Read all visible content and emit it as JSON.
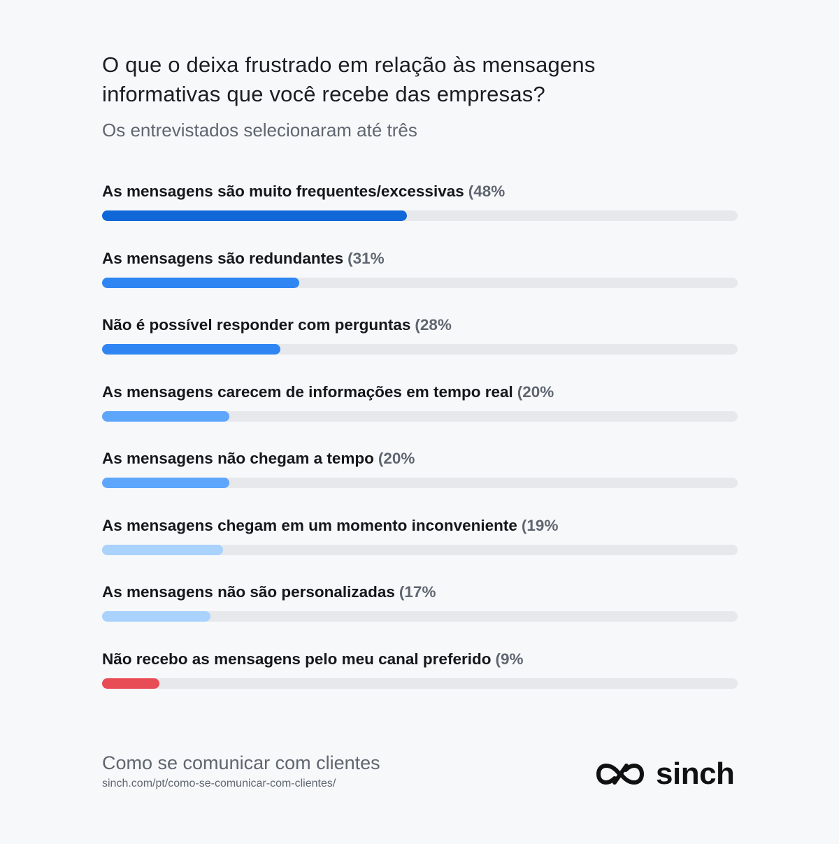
{
  "title_line1": "O que o deixa frustrado em relação às mensagens",
  "title_line2": "informativas que você recebe das empresas?",
  "subtitle": "Os entrevistados selecionaram até três",
  "chart_data": {
    "type": "bar",
    "orientation": "horizontal",
    "title": "O que o deixa frustrado em relação às mensagens informativas que você recebe das empresas?",
    "subtitle": "Os entrevistados selecionaram até três",
    "xlim": [
      0,
      100
    ],
    "categories": [
      "As mensagens são muito frequentes/excessivas",
      "As mensagens são redundantes",
      "Não é possível responder com perguntas",
      "As mensagens carecem de informações em tempo real",
      "As mensagens não chegam a tempo",
      "As mensagens chegam em um momento inconveniente",
      "As mensagens não são personalizadas",
      "Não recebo as mensagens pelo meu canal preferido"
    ],
    "values": [
      48,
      31,
      28,
      20,
      20,
      19,
      17,
      9
    ],
    "value_labels": [
      "(48%",
      "(31%",
      "(28%",
      "(20%",
      "(20%",
      "(19%",
      "(17%",
      "(9%"
    ],
    "colors": [
      "#0f67d8",
      "#2f86f2",
      "#2f86f2",
      "#5ea6fb",
      "#5ea6fb",
      "#a9d2fd",
      "#a9d2fd",
      "#e84c55"
    ],
    "track_color": "#e6e8ec"
  },
  "footer": {
    "title": "Como se comunicar com clientes",
    "url": "sinch.com/pt/como-se-comunicar-com-clientes/"
  },
  "logo": {
    "icon": "sinch-infinity-logo-icon",
    "text": "sinch"
  }
}
